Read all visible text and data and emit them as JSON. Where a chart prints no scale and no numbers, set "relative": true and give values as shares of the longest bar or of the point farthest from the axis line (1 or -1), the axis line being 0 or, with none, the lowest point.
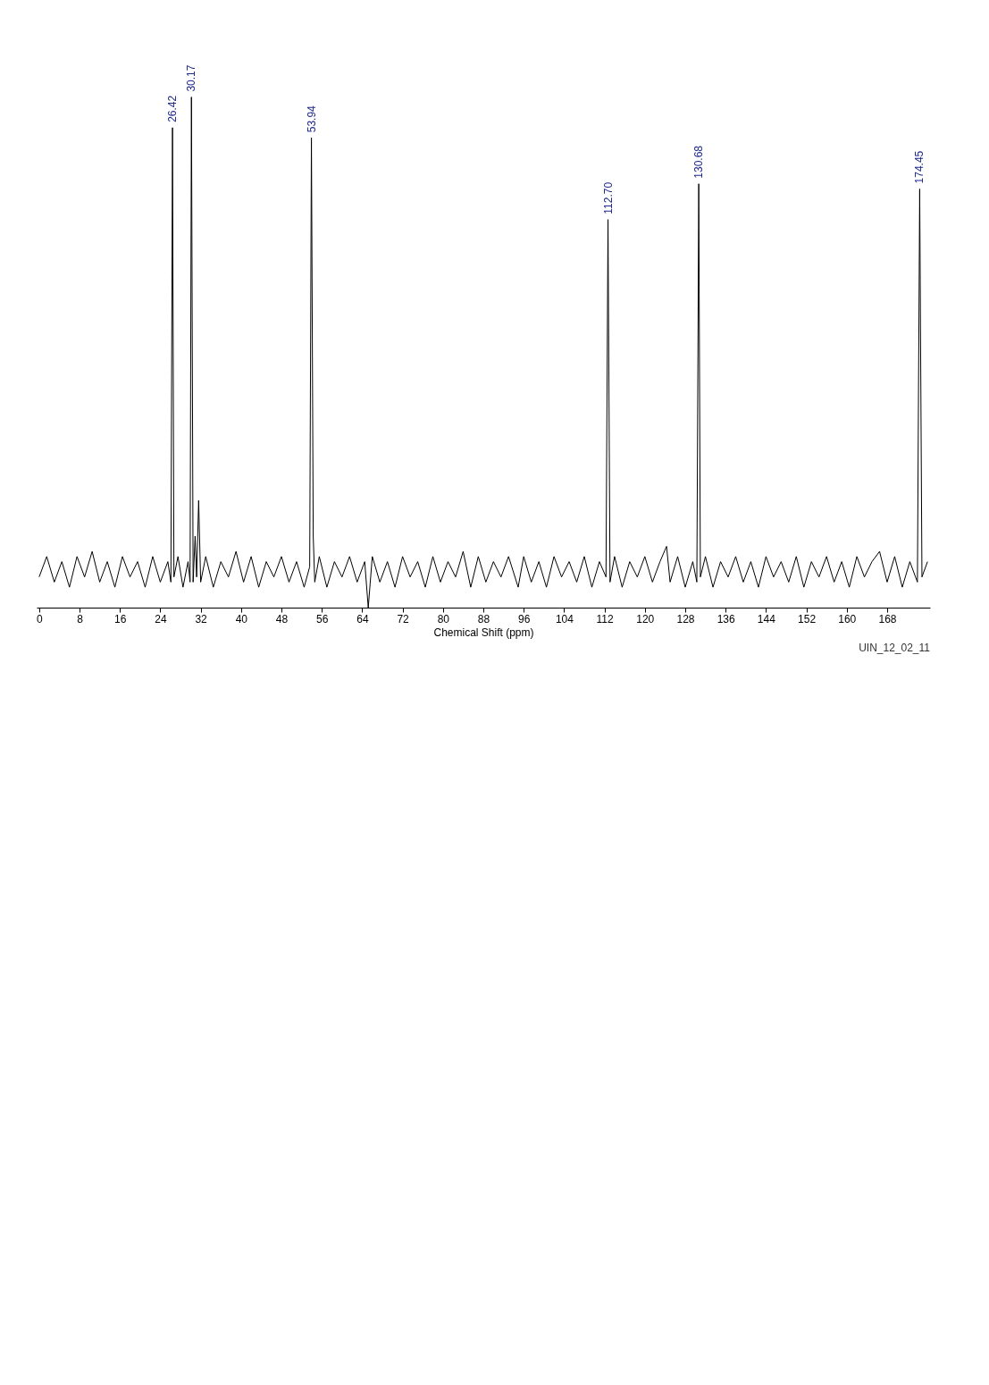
{
  "chart_data": {
    "type": "line",
    "relative": true,
    "xlabel": "Chemical Shift (ppm)",
    "xlim": [
      -0.5,
      176.5
    ],
    "xticks": [
      0,
      8,
      16,
      24,
      32,
      40,
      48,
      56,
      64,
      72,
      80,
      88,
      96,
      104,
      112,
      120,
      128,
      136,
      144,
      152,
      160,
      168
    ],
    "grid": false,
    "series": [
      {
        "color": "#000000",
        "x": [
          0,
          1.5,
          3,
          4.5,
          6,
          7.5,
          9,
          10.5,
          12,
          13.5,
          15,
          16.5,
          18,
          19.5,
          21,
          22.5,
          24,
          25.5,
          26.1,
          26.42,
          26.7,
          27.5,
          28.5,
          29.5,
          29.9,
          30.17,
          30.5,
          30.9,
          31.2,
          31.6,
          32,
          33,
          34.5,
          36,
          37.5,
          39,
          40.5,
          42,
          43.5,
          45,
          46.5,
          48,
          49.5,
          51,
          52.5,
          53.6,
          53.94,
          54.3,
          54.6,
          55.5,
          57,
          58.5,
          60,
          61.5,
          63,
          64.5,
          65.2,
          66,
          67.5,
          69,
          70.5,
          72,
          73.5,
          75,
          76.5,
          78,
          79.5,
          81,
          82.5,
          84,
          85.5,
          87,
          88.5,
          90,
          91.5,
          93,
          94.9,
          96,
          97.5,
          99,
          100.5,
          102,
          103.5,
          105,
          106.5,
          108,
          109.5,
          111,
          112.3,
          112.7,
          113.1,
          114,
          115.5,
          117,
          118.5,
          120,
          121.5,
          123,
          124.3,
          125,
          126.5,
          128,
          129.5,
          130.3,
          130.68,
          131,
          132,
          133.5,
          135,
          136.5,
          138,
          139.5,
          141,
          142.5,
          144,
          145.5,
          147,
          148.5,
          150,
          151.5,
          153,
          154.5,
          156,
          157.5,
          159,
          160.5,
          162,
          163.5,
          165,
          166.5,
          168,
          169.5,
          171,
          172.5,
          174,
          174.45,
          174.9,
          176
        ],
        "values": [
          0.06,
          0.1,
          0.05,
          0.09,
          0.04,
          0.1,
          0.06,
          0.11,
          0.05,
          0.09,
          0.04,
          0.1,
          0.06,
          0.09,
          0.04,
          0.1,
          0.05,
          0.09,
          0.05,
          0.94,
          0.06,
          0.1,
          0.04,
          0.09,
          0.05,
          1.0,
          0.05,
          0.14,
          0.06,
          0.21,
          0.05,
          0.1,
          0.04,
          0.09,
          0.06,
          0.11,
          0.05,
          0.1,
          0.04,
          0.09,
          0.06,
          0.1,
          0.05,
          0.09,
          0.04,
          0.08,
          0.92,
          0.14,
          0.05,
          0.1,
          0.04,
          0.09,
          0.06,
          0.1,
          0.05,
          0.09,
          0.0,
          0.1,
          0.05,
          0.09,
          0.04,
          0.1,
          0.06,
          0.09,
          0.04,
          0.1,
          0.05,
          0.09,
          0.06,
          0.11,
          0.04,
          0.1,
          0.05,
          0.09,
          0.06,
          0.1,
          0.04,
          0.1,
          0.05,
          0.09,
          0.04,
          0.1,
          0.06,
          0.09,
          0.05,
          0.1,
          0.04,
          0.09,
          0.06,
          0.76,
          0.05,
          0.1,
          0.04,
          0.09,
          0.06,
          0.1,
          0.05,
          0.09,
          0.12,
          0.05,
          0.1,
          0.04,
          0.09,
          0.05,
          0.83,
          0.06,
          0.1,
          0.04,
          0.09,
          0.06,
          0.1,
          0.05,
          0.09,
          0.04,
          0.1,
          0.06,
          0.09,
          0.05,
          0.1,
          0.04,
          0.09,
          0.06,
          0.1,
          0.05,
          0.09,
          0.04,
          0.1,
          0.06,
          0.09,
          0.11,
          0.05,
          0.1,
          0.04,
          0.09,
          0.05,
          0.82,
          0.06,
          0.09
        ]
      }
    ],
    "annotations": [
      {
        "text": "26.42",
        "x": 26.42,
        "y": 0.94
      },
      {
        "text": "30.17",
        "x": 30.17,
        "y": 1.0
      },
      {
        "text": "53.94",
        "x": 53.94,
        "y": 0.92
      },
      {
        "text": "112.70",
        "x": 112.7,
        "y": 0.76
      },
      {
        "text": "130.68",
        "x": 130.68,
        "y": 0.83
      },
      {
        "text": "174.45",
        "x": 174.45,
        "y": 0.82
      },
      "UIN_12_02_11"
    ]
  }
}
